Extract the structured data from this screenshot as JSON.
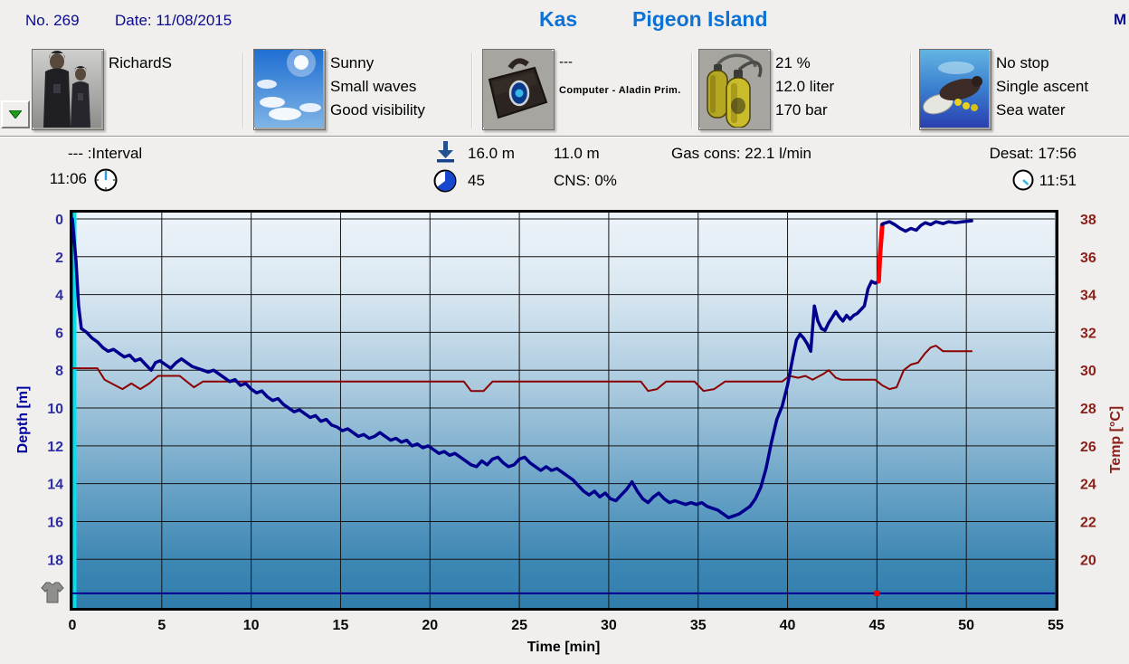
{
  "header": {
    "dive_no": "No. 269",
    "date_label": "Date: 11/08/2015",
    "location": "Kas",
    "site": "Pigeon Island",
    "partial_right": "M"
  },
  "sections": {
    "diver": {
      "name": "RichardS"
    },
    "weather": {
      "lines": [
        "Sunny",
        "Small waves",
        "Good visibility"
      ]
    },
    "equipment": {
      "line1": "---",
      "line2": "Computer - Aladin Prim."
    },
    "tank": {
      "lines": [
        "21 %",
        "12.0 liter",
        "170 bar"
      ]
    },
    "dive_type": {
      "lines": [
        "No stop",
        "Single ascent",
        "Sea water"
      ]
    }
  },
  "info": {
    "interval_label": "--- :Interval",
    "start_time": "11:06",
    "max_depth": "16.0 m",
    "dive_time": "45",
    "avg_depth": "11.0 m",
    "cns": "CNS: 0%",
    "gas_cons": "Gas cons: 22.1 l/min",
    "desat": "Desat: 17:56",
    "end_time": "11:51"
  },
  "chart_data": {
    "type": "line",
    "xlabel": "Time [min]",
    "ylabel_left": "Depth [m]",
    "ylabel_right": "Temp [°C]",
    "xlim": [
      0,
      55
    ],
    "ylim_depth": [
      0,
      20.6
    ],
    "ylim_temp": [
      38,
      17.4
    ],
    "grid": true,
    "xticks": [
      0,
      5,
      10,
      15,
      20,
      25,
      30,
      35,
      40,
      45,
      50,
      55
    ],
    "yticks_depth": [
      0,
      2,
      4,
      6,
      8,
      10,
      12,
      14,
      16,
      18
    ],
    "yticks_temp": [
      38,
      36,
      34,
      32,
      30,
      28,
      26,
      24,
      22,
      20
    ],
    "entry_line": {
      "color": "#00e2f0"
    },
    "bottom_line": {
      "depth": 19.8,
      "color": "#000090",
      "marker_t": 45,
      "marker_color": "#ff0000"
    },
    "series": [
      {
        "name": "temperature",
        "axis": "temp",
        "color": "#8b0000",
        "width": 2,
        "points": [
          [
            0,
            30.1
          ],
          [
            1.4,
            30.1
          ],
          [
            1.8,
            29.5
          ],
          [
            2.4,
            29.2
          ],
          [
            2.8,
            29.0
          ],
          [
            3.3,
            29.3
          ],
          [
            3.8,
            29.0
          ],
          [
            4.3,
            29.3
          ],
          [
            4.8,
            29.7
          ],
          [
            6.0,
            29.7
          ],
          [
            6.4,
            29.4
          ],
          [
            6.8,
            29.1
          ],
          [
            7.3,
            29.4
          ],
          [
            21.9,
            29.4
          ],
          [
            22.3,
            28.9
          ],
          [
            23.0,
            28.9
          ],
          [
            23.5,
            29.4
          ],
          [
            31.8,
            29.4
          ],
          [
            32.2,
            28.9
          ],
          [
            32.7,
            29.0
          ],
          [
            33.2,
            29.4
          ],
          [
            34.8,
            29.4
          ],
          [
            35.3,
            28.9
          ],
          [
            35.9,
            29.0
          ],
          [
            36.5,
            29.4
          ],
          [
            39.7,
            29.4
          ],
          [
            40.1,
            29.7
          ],
          [
            40.6,
            29.6
          ],
          [
            41.0,
            29.7
          ],
          [
            41.4,
            29.5
          ],
          [
            42.0,
            29.8
          ],
          [
            42.3,
            30.0
          ],
          [
            42.7,
            29.6
          ],
          [
            43.0,
            29.5
          ],
          [
            44.9,
            29.5
          ],
          [
            45.3,
            29.2
          ],
          [
            45.7,
            29.0
          ],
          [
            46.1,
            29.1
          ],
          [
            46.5,
            30.0
          ],
          [
            46.9,
            30.3
          ],
          [
            47.3,
            30.4
          ],
          [
            47.7,
            30.9
          ],
          [
            48.0,
            31.2
          ],
          [
            48.3,
            31.3
          ],
          [
            48.7,
            31.0
          ],
          [
            50.3,
            31.0
          ]
        ]
      },
      {
        "name": "depth",
        "axis": "depth",
        "color": "#00008c",
        "width": 3.5,
        "points": [
          [
            0,
            0
          ],
          [
            0.2,
            2.2
          ],
          [
            0.35,
            4.6
          ],
          [
            0.5,
            5.8
          ],
          [
            0.8,
            6.0
          ],
          [
            1.1,
            6.3
          ],
          [
            1.4,
            6.5
          ],
          [
            1.7,
            6.8
          ],
          [
            2.0,
            7.0
          ],
          [
            2.3,
            6.9
          ],
          [
            2.6,
            7.1
          ],
          [
            2.9,
            7.3
          ],
          [
            3.2,
            7.2
          ],
          [
            3.5,
            7.5
          ],
          [
            3.8,
            7.4
          ],
          [
            4.1,
            7.7
          ],
          [
            4.4,
            8.0
          ],
          [
            4.65,
            7.6
          ],
          [
            4.9,
            7.5
          ],
          [
            5.2,
            7.7
          ],
          [
            5.5,
            7.9
          ],
          [
            5.8,
            7.6
          ],
          [
            6.1,
            7.4
          ],
          [
            6.4,
            7.6
          ],
          [
            6.7,
            7.8
          ],
          [
            7.0,
            7.9
          ],
          [
            7.3,
            8.0
          ],
          [
            7.6,
            8.1
          ],
          [
            7.9,
            8.0
          ],
          [
            8.2,
            8.2
          ],
          [
            8.5,
            8.4
          ],
          [
            8.8,
            8.6
          ],
          [
            9.1,
            8.5
          ],
          [
            9.4,
            8.8
          ],
          [
            9.7,
            8.7
          ],
          [
            10.0,
            9.0
          ],
          [
            10.3,
            9.2
          ],
          [
            10.6,
            9.1
          ],
          [
            10.9,
            9.4
          ],
          [
            11.2,
            9.6
          ],
          [
            11.5,
            9.5
          ],
          [
            11.8,
            9.8
          ],
          [
            12.1,
            10.0
          ],
          [
            12.4,
            10.2
          ],
          [
            12.7,
            10.1
          ],
          [
            13.0,
            10.3
          ],
          [
            13.3,
            10.5
          ],
          [
            13.6,
            10.4
          ],
          [
            13.9,
            10.7
          ],
          [
            14.2,
            10.6
          ],
          [
            14.5,
            10.9
          ],
          [
            14.8,
            11.0
          ],
          [
            15.1,
            11.2
          ],
          [
            15.4,
            11.1
          ],
          [
            15.7,
            11.3
          ],
          [
            16.0,
            11.5
          ],
          [
            16.3,
            11.4
          ],
          [
            16.6,
            11.6
          ],
          [
            16.9,
            11.5
          ],
          [
            17.2,
            11.3
          ],
          [
            17.5,
            11.5
          ],
          [
            17.8,
            11.7
          ],
          [
            18.1,
            11.6
          ],
          [
            18.4,
            11.8
          ],
          [
            18.7,
            11.7
          ],
          [
            19.0,
            12.0
          ],
          [
            19.3,
            11.9
          ],
          [
            19.6,
            12.1
          ],
          [
            19.9,
            12.0
          ],
          [
            20.2,
            12.2
          ],
          [
            20.5,
            12.4
          ],
          [
            20.8,
            12.3
          ],
          [
            21.1,
            12.5
          ],
          [
            21.4,
            12.4
          ],
          [
            21.7,
            12.6
          ],
          [
            22.0,
            12.8
          ],
          [
            22.3,
            13.0
          ],
          [
            22.6,
            13.1
          ],
          [
            22.9,
            12.8
          ],
          [
            23.2,
            13.0
          ],
          [
            23.5,
            12.7
          ],
          [
            23.8,
            12.6
          ],
          [
            24.1,
            12.9
          ],
          [
            24.4,
            13.1
          ],
          [
            24.7,
            13.0
          ],
          [
            25.0,
            12.7
          ],
          [
            25.3,
            12.6
          ],
          [
            25.6,
            12.9
          ],
          [
            25.9,
            13.1
          ],
          [
            26.2,
            13.3
          ],
          [
            26.5,
            13.1
          ],
          [
            26.8,
            13.3
          ],
          [
            27.1,
            13.2
          ],
          [
            27.4,
            13.4
          ],
          [
            27.7,
            13.6
          ],
          [
            28.0,
            13.8
          ],
          [
            28.3,
            14.1
          ],
          [
            28.6,
            14.4
          ],
          [
            28.9,
            14.6
          ],
          [
            29.2,
            14.4
          ],
          [
            29.5,
            14.7
          ],
          [
            29.8,
            14.5
          ],
          [
            30.1,
            14.8
          ],
          [
            30.4,
            14.9
          ],
          [
            30.7,
            14.6
          ],
          [
            31.0,
            14.3
          ],
          [
            31.3,
            13.9
          ],
          [
            31.6,
            14.4
          ],
          [
            31.9,
            14.8
          ],
          [
            32.2,
            15.0
          ],
          [
            32.5,
            14.7
          ],
          [
            32.8,
            14.5
          ],
          [
            33.1,
            14.8
          ],
          [
            33.4,
            15.0
          ],
          [
            33.7,
            14.9
          ],
          [
            34.0,
            15.0
          ],
          [
            34.3,
            15.1
          ],
          [
            34.6,
            15.0
          ],
          [
            34.9,
            15.1
          ],
          [
            35.2,
            15.0
          ],
          [
            35.5,
            15.2
          ],
          [
            35.8,
            15.3
          ],
          [
            36.1,
            15.4
          ],
          [
            36.4,
            15.6
          ],
          [
            36.7,
            15.8
          ],
          [
            37.0,
            15.7
          ],
          [
            37.3,
            15.6
          ],
          [
            37.6,
            15.4
          ],
          [
            37.9,
            15.2
          ],
          [
            38.2,
            14.8
          ],
          [
            38.5,
            14.2
          ],
          [
            38.8,
            13.2
          ],
          [
            39.1,
            11.8
          ],
          [
            39.4,
            10.6
          ],
          [
            39.7,
            9.9
          ],
          [
            40.0,
            8.8
          ],
          [
            40.3,
            7.3
          ],
          [
            40.5,
            6.4
          ],
          [
            40.7,
            6.1
          ],
          [
            40.9,
            6.3
          ],
          [
            41.1,
            6.6
          ],
          [
            41.3,
            7.0
          ],
          [
            41.5,
            4.6
          ],
          [
            41.7,
            5.4
          ],
          [
            41.9,
            5.8
          ],
          [
            42.1,
            5.9
          ],
          [
            42.3,
            5.5
          ],
          [
            42.5,
            5.2
          ],
          [
            42.7,
            4.9
          ],
          [
            42.9,
            5.2
          ],
          [
            43.1,
            5.4
          ],
          [
            43.3,
            5.1
          ],
          [
            43.5,
            5.3
          ],
          [
            43.7,
            5.1
          ],
          [
            43.9,
            5.0
          ],
          [
            44.1,
            4.8
          ],
          [
            44.3,
            4.6
          ],
          [
            44.5,
            3.7
          ],
          [
            44.7,
            3.3
          ],
          [
            44.9,
            3.4
          ],
          [
            45.1,
            3.3
          ]
        ]
      },
      {
        "name": "ascent-warning",
        "axis": "depth",
        "color": "#ff0000",
        "width": 5,
        "points": [
          [
            45.1,
            3.3
          ],
          [
            45.18,
            1.8
          ],
          [
            45.3,
            0.3
          ]
        ]
      },
      {
        "name": "surface",
        "axis": "depth",
        "color": "#00008c",
        "width": 3.5,
        "points": [
          [
            45.3,
            0.3
          ],
          [
            45.35,
            0.25
          ],
          [
            45.7,
            0.15
          ],
          [
            46.0,
            0.3
          ],
          [
            46.3,
            0.5
          ],
          [
            46.6,
            0.65
          ],
          [
            46.9,
            0.5
          ],
          [
            47.2,
            0.6
          ],
          [
            47.45,
            0.35
          ],
          [
            47.7,
            0.2
          ],
          [
            48.0,
            0.3
          ],
          [
            48.3,
            0.15
          ],
          [
            48.7,
            0.25
          ],
          [
            49.0,
            0.15
          ],
          [
            49.4,
            0.2
          ],
          [
            49.8,
            0.15
          ],
          [
            50.3,
            0.1
          ]
        ]
      }
    ]
  }
}
